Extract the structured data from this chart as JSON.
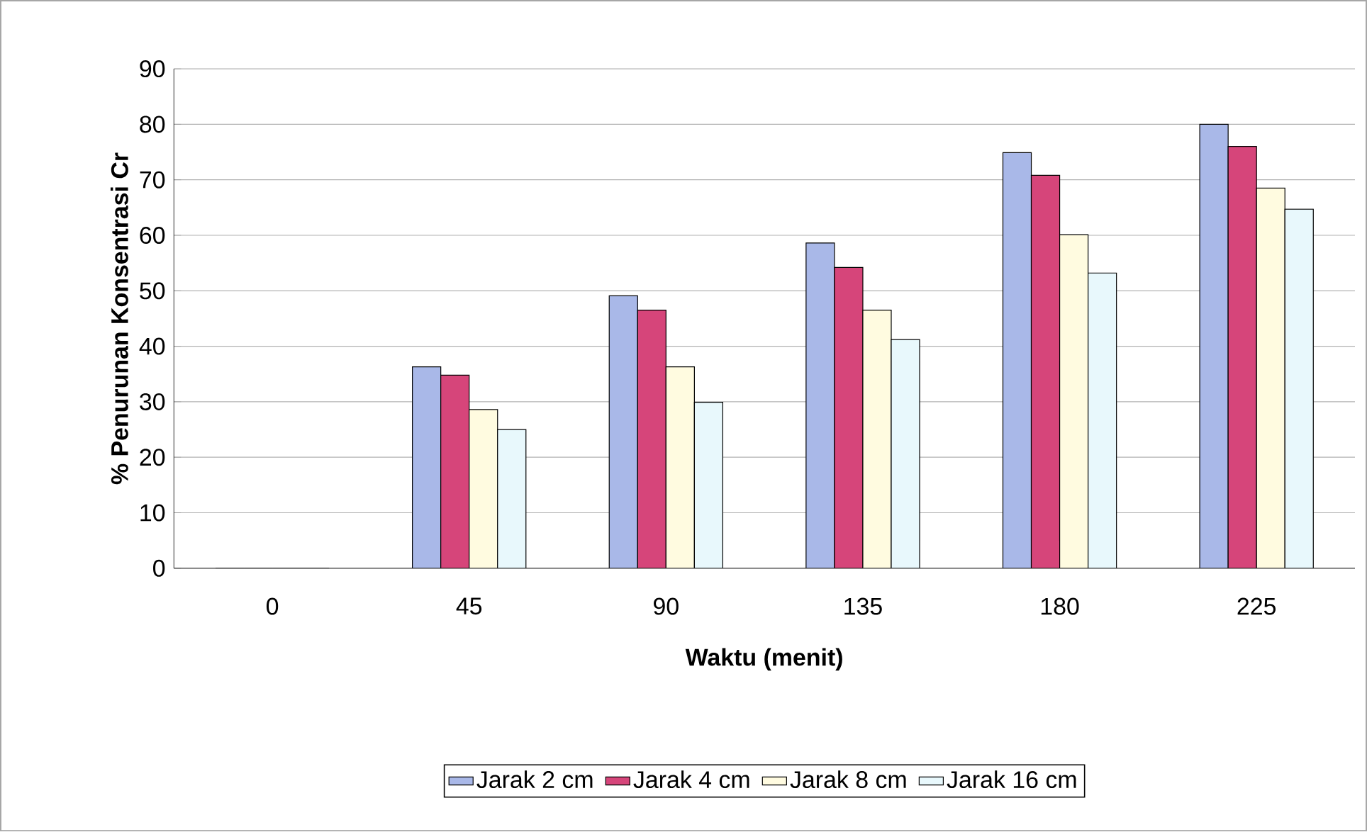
{
  "chart_data": {
    "type": "bar",
    "xlabel": "Waktu (menit)",
    "ylabel": "% Penurunan Konsentrasi Cr",
    "categories": [
      "0",
      "45",
      "90",
      "135",
      "180",
      "225"
    ],
    "series": [
      {
        "name": "Jarak 2 cm",
        "color": "#a9b8e8",
        "values": [
          0,
          36.3,
          49.1,
          58.6,
          74.9,
          80.0
        ]
      },
      {
        "name": "Jarak 4 cm",
        "color": "#d6457a",
        "values": [
          0,
          34.8,
          46.5,
          54.2,
          70.8,
          76.0
        ]
      },
      {
        "name": "Jarak 8 cm",
        "color": "#fffbe0",
        "values": [
          0,
          28.6,
          36.3,
          46.5,
          60.1,
          68.5
        ]
      },
      {
        "name": "Jarak 16 cm",
        "color": "#e8f8fc",
        "values": [
          0,
          25.0,
          29.9,
          41.2,
          53.2,
          64.7
        ]
      }
    ],
    "ylim": [
      0,
      90
    ],
    "yticks": [
      0,
      10,
      20,
      30,
      40,
      50,
      60,
      70,
      80,
      90
    ],
    "grid": "y",
    "legend": "bottom"
  }
}
